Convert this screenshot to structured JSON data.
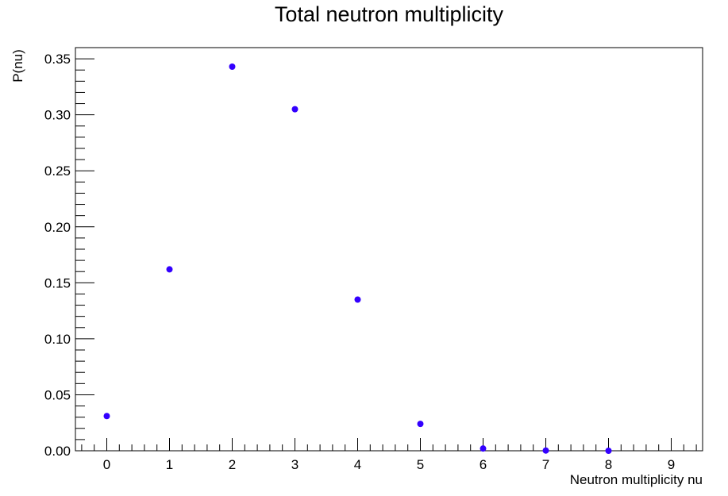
{
  "chart_data": {
    "type": "scatter",
    "title": "Total neutron multiplicity",
    "xlabel": "Neutron multiplicity nu",
    "ylabel": "P(nu)",
    "xlim": [
      -0.5,
      9.5
    ],
    "ylim": [
      0,
      0.36
    ],
    "x_ticks": [
      "0",
      "1",
      "2",
      "3",
      "4",
      "5",
      "6",
      "7",
      "8",
      "9"
    ],
    "y_ticks": [
      "0.00",
      "0.05",
      "0.10",
      "0.15",
      "0.20",
      "0.25",
      "0.30",
      "0.35"
    ],
    "grid": false,
    "marker_color": "#3300ff",
    "series": [
      {
        "x": [
          0,
          1,
          2,
          3,
          4,
          5,
          6,
          7,
          8
        ],
        "y": [
          0.031,
          0.162,
          0.343,
          0.305,
          0.135,
          0.024,
          0.002,
          0.0002,
          0.0
        ]
      }
    ]
  }
}
